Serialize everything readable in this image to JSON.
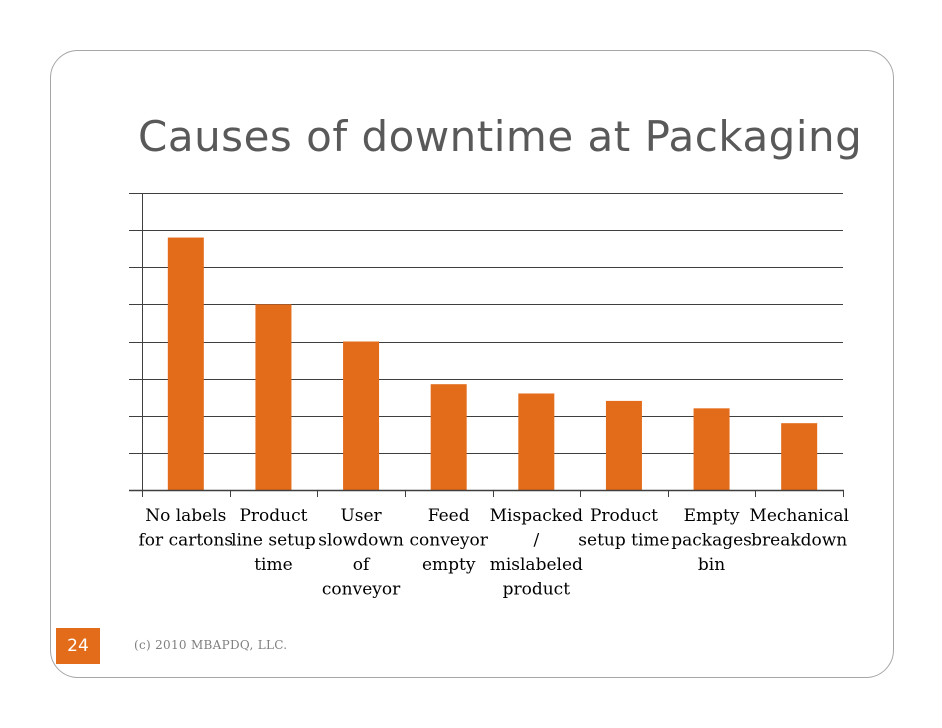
{
  "slide": {
    "title": "Causes of downtime at Packaging",
    "page_number": "24",
    "footer": "(c) 2010 MBAPDQ, LLC."
  },
  "colors": {
    "bar": "#e36c1a",
    "gridline": "#3f3f3f",
    "page_box": "#e36c1a"
  },
  "chart_data": {
    "type": "bar",
    "title": "",
    "xlabel": "",
    "ylabel": "",
    "ylim": [
      0,
      8
    ],
    "grid": true,
    "categories": [
      [
        "No labels",
        "for cartons"
      ],
      [
        "Product",
        "line setup",
        "time"
      ],
      [
        "User",
        "slowdown",
        "of",
        "conveyor"
      ],
      [
        "Feed",
        "conveyor",
        "empty"
      ],
      [
        "Mispacked",
        "/",
        "mislabeled",
        "product"
      ],
      [
        "Product",
        "setup time"
      ],
      [
        "Empty",
        "packages",
        "bin"
      ],
      [
        "Mechanical",
        "breakdown"
      ]
    ],
    "values": [
      6.8,
      5.0,
      4.0,
      2.85,
      2.6,
      2.4,
      2.2,
      1.8
    ]
  }
}
